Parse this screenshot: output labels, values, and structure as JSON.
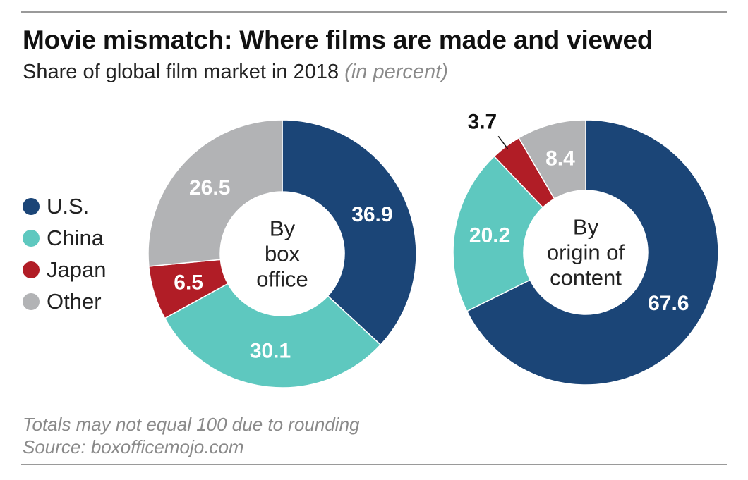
{
  "header": {
    "title": "Movie mismatch: Where films are made and viewed",
    "subtitle": "Share of global film market in 2018",
    "unit": "(in percent)"
  },
  "legend": [
    {
      "label": "U.S.",
      "color": "#1b4577"
    },
    {
      "label": "China",
      "color": "#5ec8bf"
    },
    {
      "label": "Japan",
      "color": "#b11d26"
    },
    {
      "label": "Other",
      "color": "#b2b3b5"
    }
  ],
  "chart_data": [
    {
      "type": "pie",
      "center_label": [
        "By",
        "box",
        "office"
      ],
      "categories": [
        "U.S.",
        "China",
        "Japan",
        "Other"
      ],
      "values": [
        36.9,
        30.1,
        6.5,
        26.5
      ]
    },
    {
      "type": "pie",
      "center_label": [
        "By",
        "origin of",
        "content"
      ],
      "categories": [
        "U.S.",
        "China",
        "Japan",
        "Other"
      ],
      "values": [
        67.6,
        20.2,
        3.7,
        8.4
      ]
    }
  ],
  "footer": {
    "note": "Totals may not equal 100 due to rounding",
    "source": "Source: boxofficemojo.com"
  }
}
